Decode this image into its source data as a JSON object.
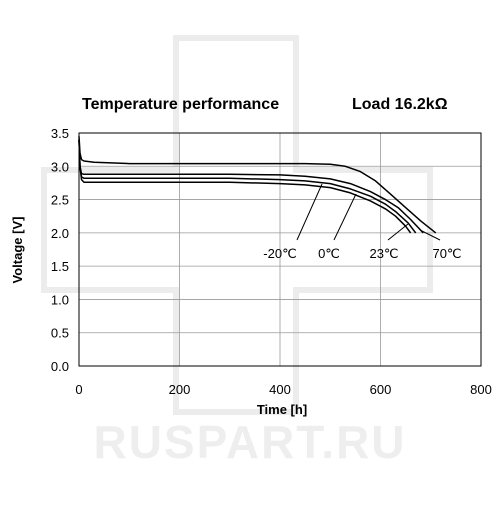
{
  "watermark": {
    "text": "RUSPART.RU"
  },
  "chart_data": {
    "type": "line",
    "title": "Temperature performance",
    "subtitle": "Load 16.2kΩ",
    "xlabel": "Time [h]",
    "ylabel": "Voltage [V]",
    "xlim": [
      0,
      800
    ],
    "ylim": [
      0,
      3.5
    ],
    "xticks": [
      0,
      200,
      400,
      600,
      800
    ],
    "yticks": [
      0.0,
      0.5,
      1.0,
      1.5,
      2.0,
      2.5,
      3.0,
      3.5
    ],
    "xtick_labels": [
      "0",
      "200",
      "400",
      "600",
      "800"
    ],
    "ytick_labels": [
      "0.0",
      "0.5",
      "1.0",
      "1.5",
      "2.0",
      "2.5",
      "3.0",
      "3.5"
    ],
    "grid": true,
    "line_color": "#000000",
    "series": [
      {
        "name": "-20℃",
        "x": [
          0,
          2,
          5,
          10,
          30,
          100,
          200,
          300,
          400,
          450,
          500,
          540,
          580,
          610,
          630,
          650,
          660
        ],
        "y": [
          3.4,
          3.0,
          2.8,
          2.76,
          2.76,
          2.76,
          2.76,
          2.76,
          2.74,
          2.72,
          2.68,
          2.6,
          2.48,
          2.36,
          2.25,
          2.1,
          2.0
        ]
      },
      {
        "name": "0℃",
        "x": [
          0,
          2,
          5,
          10,
          30,
          100,
          200,
          300,
          400,
          450,
          500,
          540,
          580,
          610,
          630,
          655,
          670
        ],
        "y": [
          3.4,
          3.0,
          2.84,
          2.82,
          2.82,
          2.82,
          2.82,
          2.82,
          2.8,
          2.78,
          2.74,
          2.66,
          2.55,
          2.43,
          2.32,
          2.15,
          2.0
        ]
      },
      {
        "name": "23℃",
        "x": [
          0,
          2,
          5,
          10,
          30,
          100,
          200,
          300,
          400,
          450,
          500,
          540,
          580,
          610,
          635,
          660,
          685
        ],
        "y": [
          3.4,
          3.0,
          2.89,
          2.88,
          2.88,
          2.88,
          2.88,
          2.88,
          2.87,
          2.85,
          2.81,
          2.74,
          2.62,
          2.5,
          2.38,
          2.2,
          2.0
        ]
      },
      {
        "name": "70℃",
        "x": [
          0,
          2,
          5,
          10,
          30,
          100,
          200,
          300,
          400,
          450,
          500,
          530,
          560,
          590,
          620,
          650,
          680,
          710
        ],
        "y": [
          3.45,
          3.2,
          3.1,
          3.08,
          3.06,
          3.04,
          3.04,
          3.04,
          3.04,
          3.04,
          3.03,
          3.0,
          2.92,
          2.78,
          2.58,
          2.38,
          2.18,
          2.0
        ]
      }
    ]
  }
}
